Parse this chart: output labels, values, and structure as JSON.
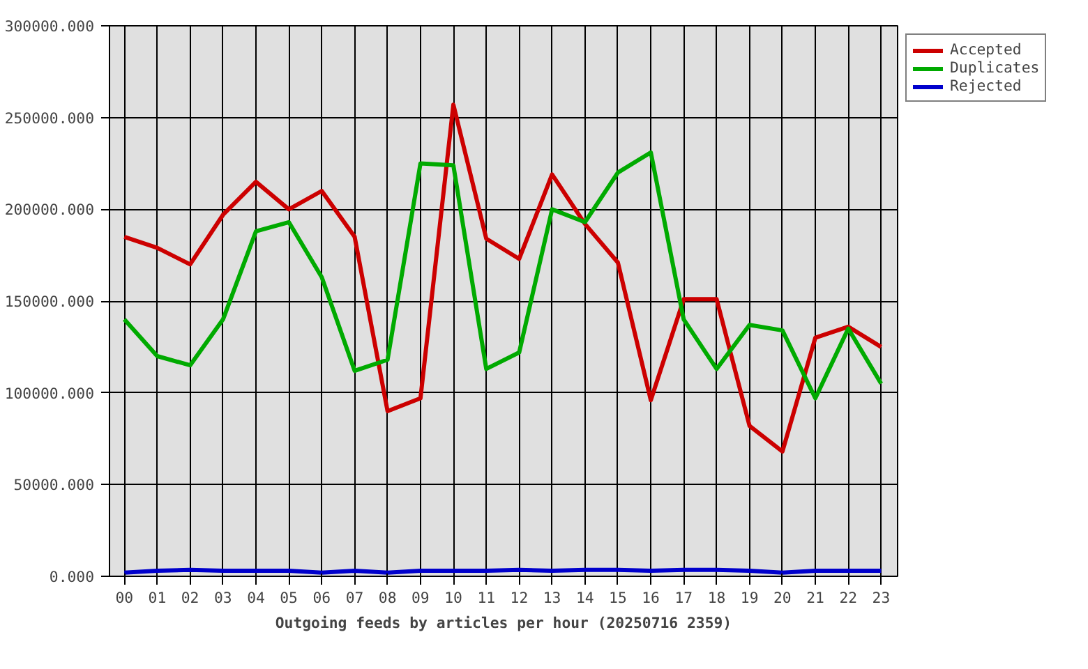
{
  "chart_data": {
    "type": "line",
    "xlabel": "Outgoing feeds by articles per hour (20250716 2359)",
    "categories": [
      "00",
      "01",
      "02",
      "03",
      "04",
      "05",
      "06",
      "07",
      "08",
      "09",
      "10",
      "11",
      "12",
      "13",
      "14",
      "15",
      "16",
      "17",
      "18",
      "19",
      "20",
      "21",
      "22",
      "23"
    ],
    "series": [
      {
        "name": "Accepted",
        "color": "#cc0000",
        "values": [
          185000,
          179000,
          170000,
          197000,
          215000,
          200000,
          210000,
          185000,
          90000,
          97000,
          257000,
          184000,
          173000,
          219000,
          192000,
          171000,
          96000,
          151000,
          151000,
          82000,
          68000,
          130000,
          136000,
          125000
        ]
      },
      {
        "name": "Duplicates",
        "color": "#00aa00",
        "values": [
          140000,
          120000,
          115000,
          140000,
          188000,
          193000,
          163000,
          112000,
          118000,
          225000,
          224000,
          113000,
          122000,
          200000,
          193000,
          220000,
          231000,
          140000,
          113000,
          137000,
          134000,
          97000,
          135000,
          105000
        ]
      },
      {
        "name": "Rejected",
        "color": "#0000cc",
        "values": [
          2000,
          3000,
          3500,
          3000,
          3000,
          3000,
          2000,
          3000,
          2000,
          3000,
          3000,
          3000,
          3500,
          3000,
          3500,
          3500,
          3000,
          3500,
          3500,
          3000,
          2000,
          3000,
          3000,
          3000
        ]
      }
    ],
    "ylim": [
      0,
      300000
    ],
    "yticks": [
      {
        "value": 0,
        "label": "0.000"
      },
      {
        "value": 50000,
        "label": "50000.000"
      },
      {
        "value": 100000,
        "label": "100000.000"
      },
      {
        "value": 150000,
        "label": "150000.000"
      },
      {
        "value": 200000,
        "label": "200000.000"
      },
      {
        "value": 250000,
        "label": "250000.000"
      },
      {
        "value": 300000,
        "label": "300000.000"
      }
    ],
    "grid": true,
    "legend": "top right",
    "marker": "none",
    "line_style": "solid"
  }
}
